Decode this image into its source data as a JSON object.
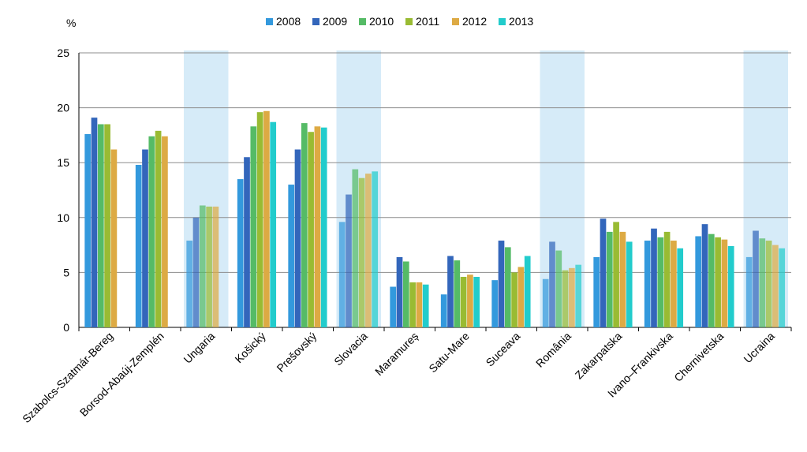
{
  "chart_data": {
    "type": "bar",
    "ylabel": "%",
    "ylim": [
      0,
      25
    ],
    "yticks": [
      0,
      5,
      10,
      15,
      20,
      25
    ],
    "grid": true,
    "legend_position": "top-center",
    "categories": [
      "Szabolcs-Szatmár-Bereg",
      "Borsod-Abaúj-Zemplén",
      "Ungaria",
      "Košický",
      "Prešovský",
      "Slovacia",
      "Maramureș",
      "Satu-Mare",
      "Suceava",
      "România",
      "Zakarpatska",
      "Ivano–Frankivska",
      "Chernivetska",
      "Ucraina"
    ],
    "highlighted_categories": [
      "Ungaria",
      "Slovacia",
      "România",
      "Ucraina"
    ],
    "series": [
      {
        "name": "2008",
        "color": "#3399dd",
        "values": [
          17.6,
          14.8,
          7.9,
          13.5,
          13.0,
          9.6,
          3.7,
          3.0,
          4.3,
          4.4,
          6.4,
          7.9,
          8.3,
          6.4
        ]
      },
      {
        "name": "2009",
        "color": "#3366bb",
        "values": [
          19.1,
          16.2,
          10.0,
          15.5,
          16.2,
          12.1,
          6.4,
          6.5,
          7.9,
          7.8,
          9.9,
          9.0,
          9.4,
          8.8
        ]
      },
      {
        "name": "2010",
        "color": "#55bb66",
        "values": [
          18.5,
          17.4,
          11.1,
          18.3,
          18.6,
          14.4,
          6.0,
          6.1,
          7.3,
          7.0,
          8.7,
          8.2,
          8.5,
          8.1
        ]
      },
      {
        "name": "2011",
        "color": "#99bb33",
        "values": [
          18.5,
          17.9,
          11.0,
          19.6,
          17.8,
          13.6,
          4.1,
          4.6,
          5.0,
          5.2,
          9.6,
          8.7,
          8.2,
          7.9
        ]
      },
      {
        "name": "2012",
        "color": "#ddaa44",
        "values": [
          16.2,
          17.4,
          11.0,
          19.7,
          18.3,
          14.0,
          4.1,
          4.8,
          5.5,
          5.4,
          8.7,
          7.9,
          8.0,
          7.5
        ]
      },
      {
        "name": "2013",
        "color": "#22cccc",
        "values": [
          null,
          null,
          null,
          18.7,
          18.2,
          14.2,
          3.9,
          4.6,
          6.5,
          5.7,
          7.8,
          7.2,
          7.4,
          7.2
        ]
      }
    ]
  }
}
